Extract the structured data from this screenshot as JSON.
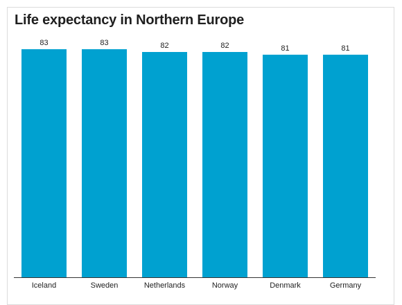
{
  "chart_data": {
    "type": "bar",
    "title": "Life expectancy in Northern Europe",
    "categories": [
      "Iceland",
      "Sweden",
      "Netherlands",
      "Norway",
      "Denmark",
      "Germany"
    ],
    "values": [
      83,
      83,
      82,
      82,
      81,
      81
    ],
    "xlabel": "",
    "ylabel": "",
    "ylim": [
      0,
      83
    ],
    "grid": false,
    "legend": "none",
    "bar_color": "#00a1d0"
  }
}
